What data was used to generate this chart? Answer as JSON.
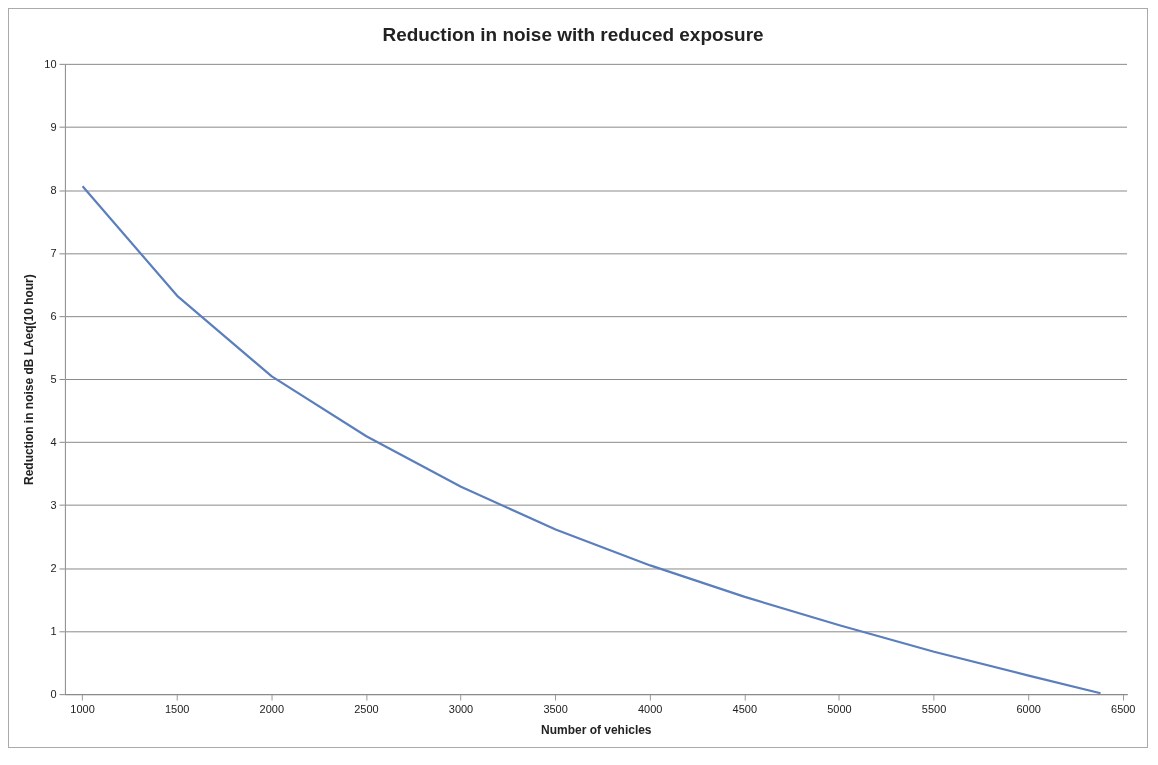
{
  "chart_data": {
    "type": "line",
    "title": "Reduction in noise with reduced exposure",
    "xlabel": "Number of vehicles",
    "ylabel": "Reduction in noise dB LAeq(10 hour)",
    "x": [
      1000,
      1500,
      2000,
      2500,
      3000,
      3500,
      4000,
      4500,
      5000,
      5500,
      6000,
      6380
    ],
    "series": [
      {
        "color": "#5b7fbd",
        "values": [
          8.07,
          6.33,
          5.05,
          4.1,
          3.3,
          2.62,
          2.05,
          1.55,
          1.1,
          0.68,
          0.3,
          0.02
        ]
      }
    ],
    "xlim": [
      910,
      6520
    ],
    "xticks": [
      1000,
      1500,
      2000,
      2500,
      3000,
      3500,
      4000,
      4500,
      5000,
      5500,
      6000,
      6500
    ],
    "ylim": [
      0,
      10
    ],
    "yticks": [
      0,
      1,
      2,
      3,
      4,
      5,
      6,
      7,
      8,
      9,
      10
    ],
    "grid": "y",
    "legend": false,
    "marker": "none",
    "line_style": "solid"
  }
}
